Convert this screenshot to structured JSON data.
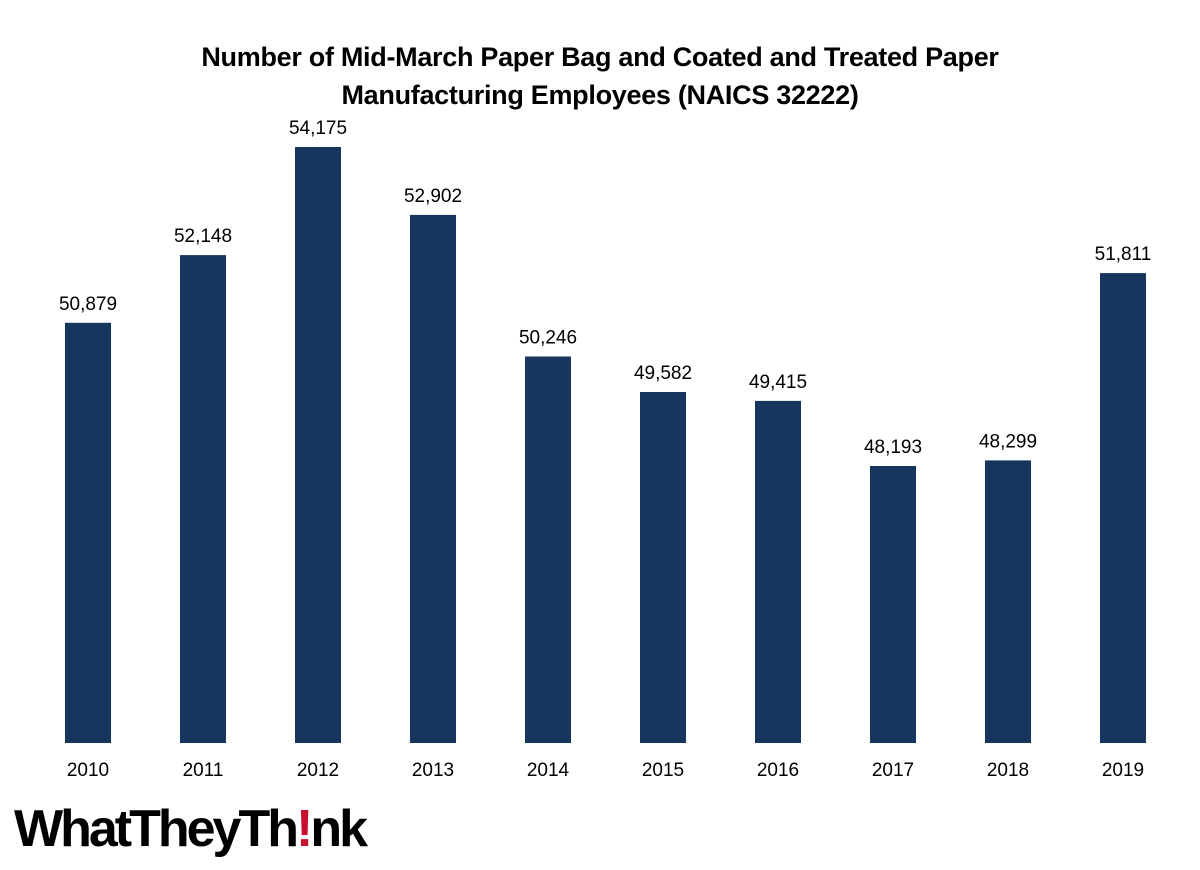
{
  "title_lines": [
    "Number of Mid-March Paper Bag and Coated and Treated Paper",
    "Manufacturing Employees (NAICS 32222)"
  ],
  "logo": {
    "text": "WhatTheyThink",
    "accent_color": "#c8102e"
  },
  "colors": {
    "bar": "#17365d",
    "text": "#000000"
  },
  "chart_data": {
    "type": "bar",
    "title": "Number of Mid-March Paper Bag and Coated and Treated Paper Manufacturing Employees (NAICS 32222)",
    "categories": [
      "2010",
      "2011",
      "2012",
      "2013",
      "2014",
      "2015",
      "2016",
      "2017",
      "2018",
      "2019"
    ],
    "values": [
      50879,
      52148,
      54175,
      52902,
      50246,
      49582,
      49415,
      48193,
      48299,
      51811
    ],
    "value_labels": [
      "50,879",
      "52,148",
      "54,175",
      "52,902",
      "50,246",
      "49,582",
      "49,415",
      "48,193",
      "48,299",
      "51,811"
    ],
    "xlabel": "",
    "ylabel": "",
    "ylim": [
      43000,
      55000
    ],
    "grid": false,
    "legend": "none"
  }
}
